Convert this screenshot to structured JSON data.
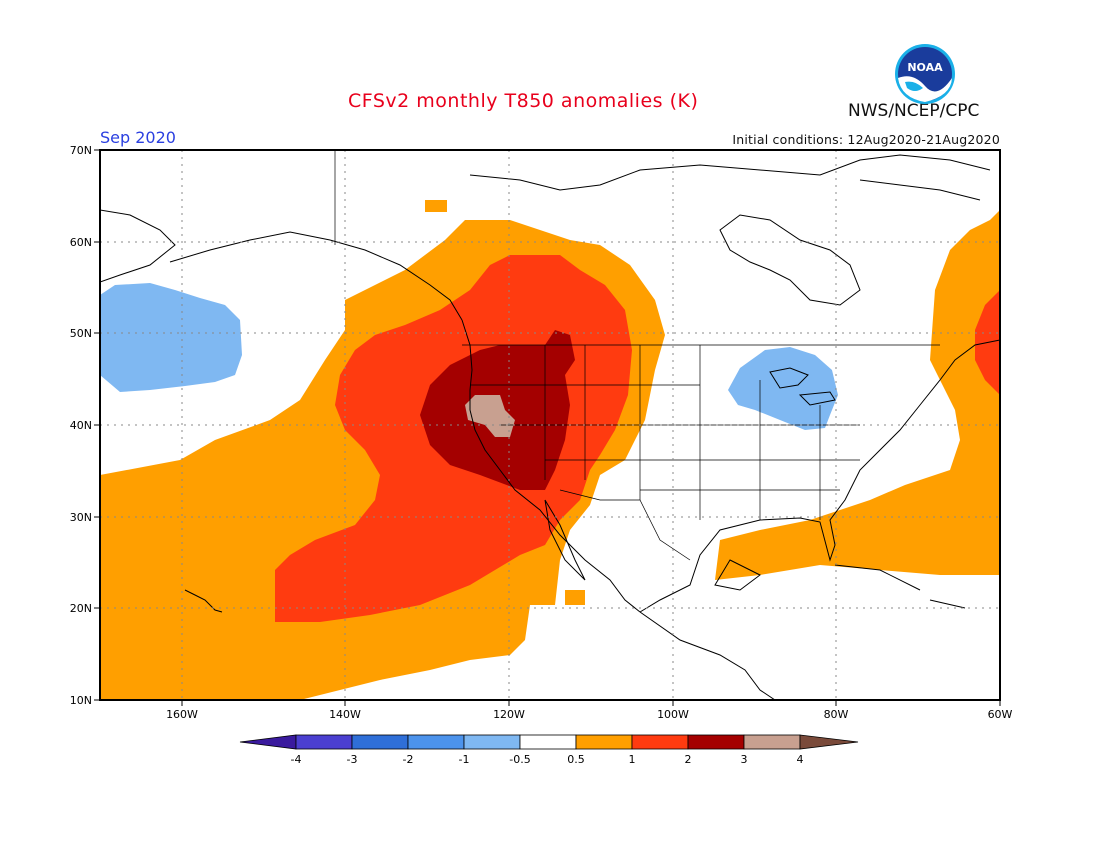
{
  "header": {
    "title": "CFSv2 monthly T850 anomalies (K)",
    "month": "Sep 2020",
    "initial_conditions": "Initial conditions: 12Aug2020-21Aug2020",
    "agency": "NWS/NCEP/CPC",
    "logo_text": "NOAA"
  },
  "map": {
    "lat_labels": [
      "70N",
      "60N",
      "50N",
      "40N",
      "30N",
      "20N",
      "10N"
    ],
    "lon_labels": [
      "160W",
      "140W",
      "120W",
      "100W",
      "80W",
      "60W"
    ],
    "lon_range": [
      "172W",
      "60W"
    ],
    "lat_range": [
      "10N",
      "70N"
    ],
    "features": [
      {
        "name": "warm-anomaly-northeast-pacific",
        "level": "0.5 to 1"
      },
      {
        "name": "warm-anomaly-western-us-core",
        "level": "3 to 4"
      },
      {
        "name": "cool-anomaly-gulf-of-alaska",
        "level": "-1 to -0.5"
      },
      {
        "name": "cool-anomaly-great-lakes",
        "level": "-1 to -0.5"
      },
      {
        "name": "warm-anomaly-northwest-atlantic",
        "level": "1 to 2"
      }
    ]
  },
  "colorbar": {
    "ticks": [
      "-4",
      "-3",
      "-2",
      "-1",
      "-0.5",
      "0.5",
      "1",
      "2",
      "3",
      "4"
    ],
    "colors": [
      "#3a1a9e",
      "#4b3fd0",
      "#2f6fd8",
      "#4c93ec",
      "#7fb8f2",
      "#ffffff",
      "#ff9f00",
      "#ff3b10",
      "#a40000",
      "#c8a090",
      "#7a4a3a"
    ]
  }
}
